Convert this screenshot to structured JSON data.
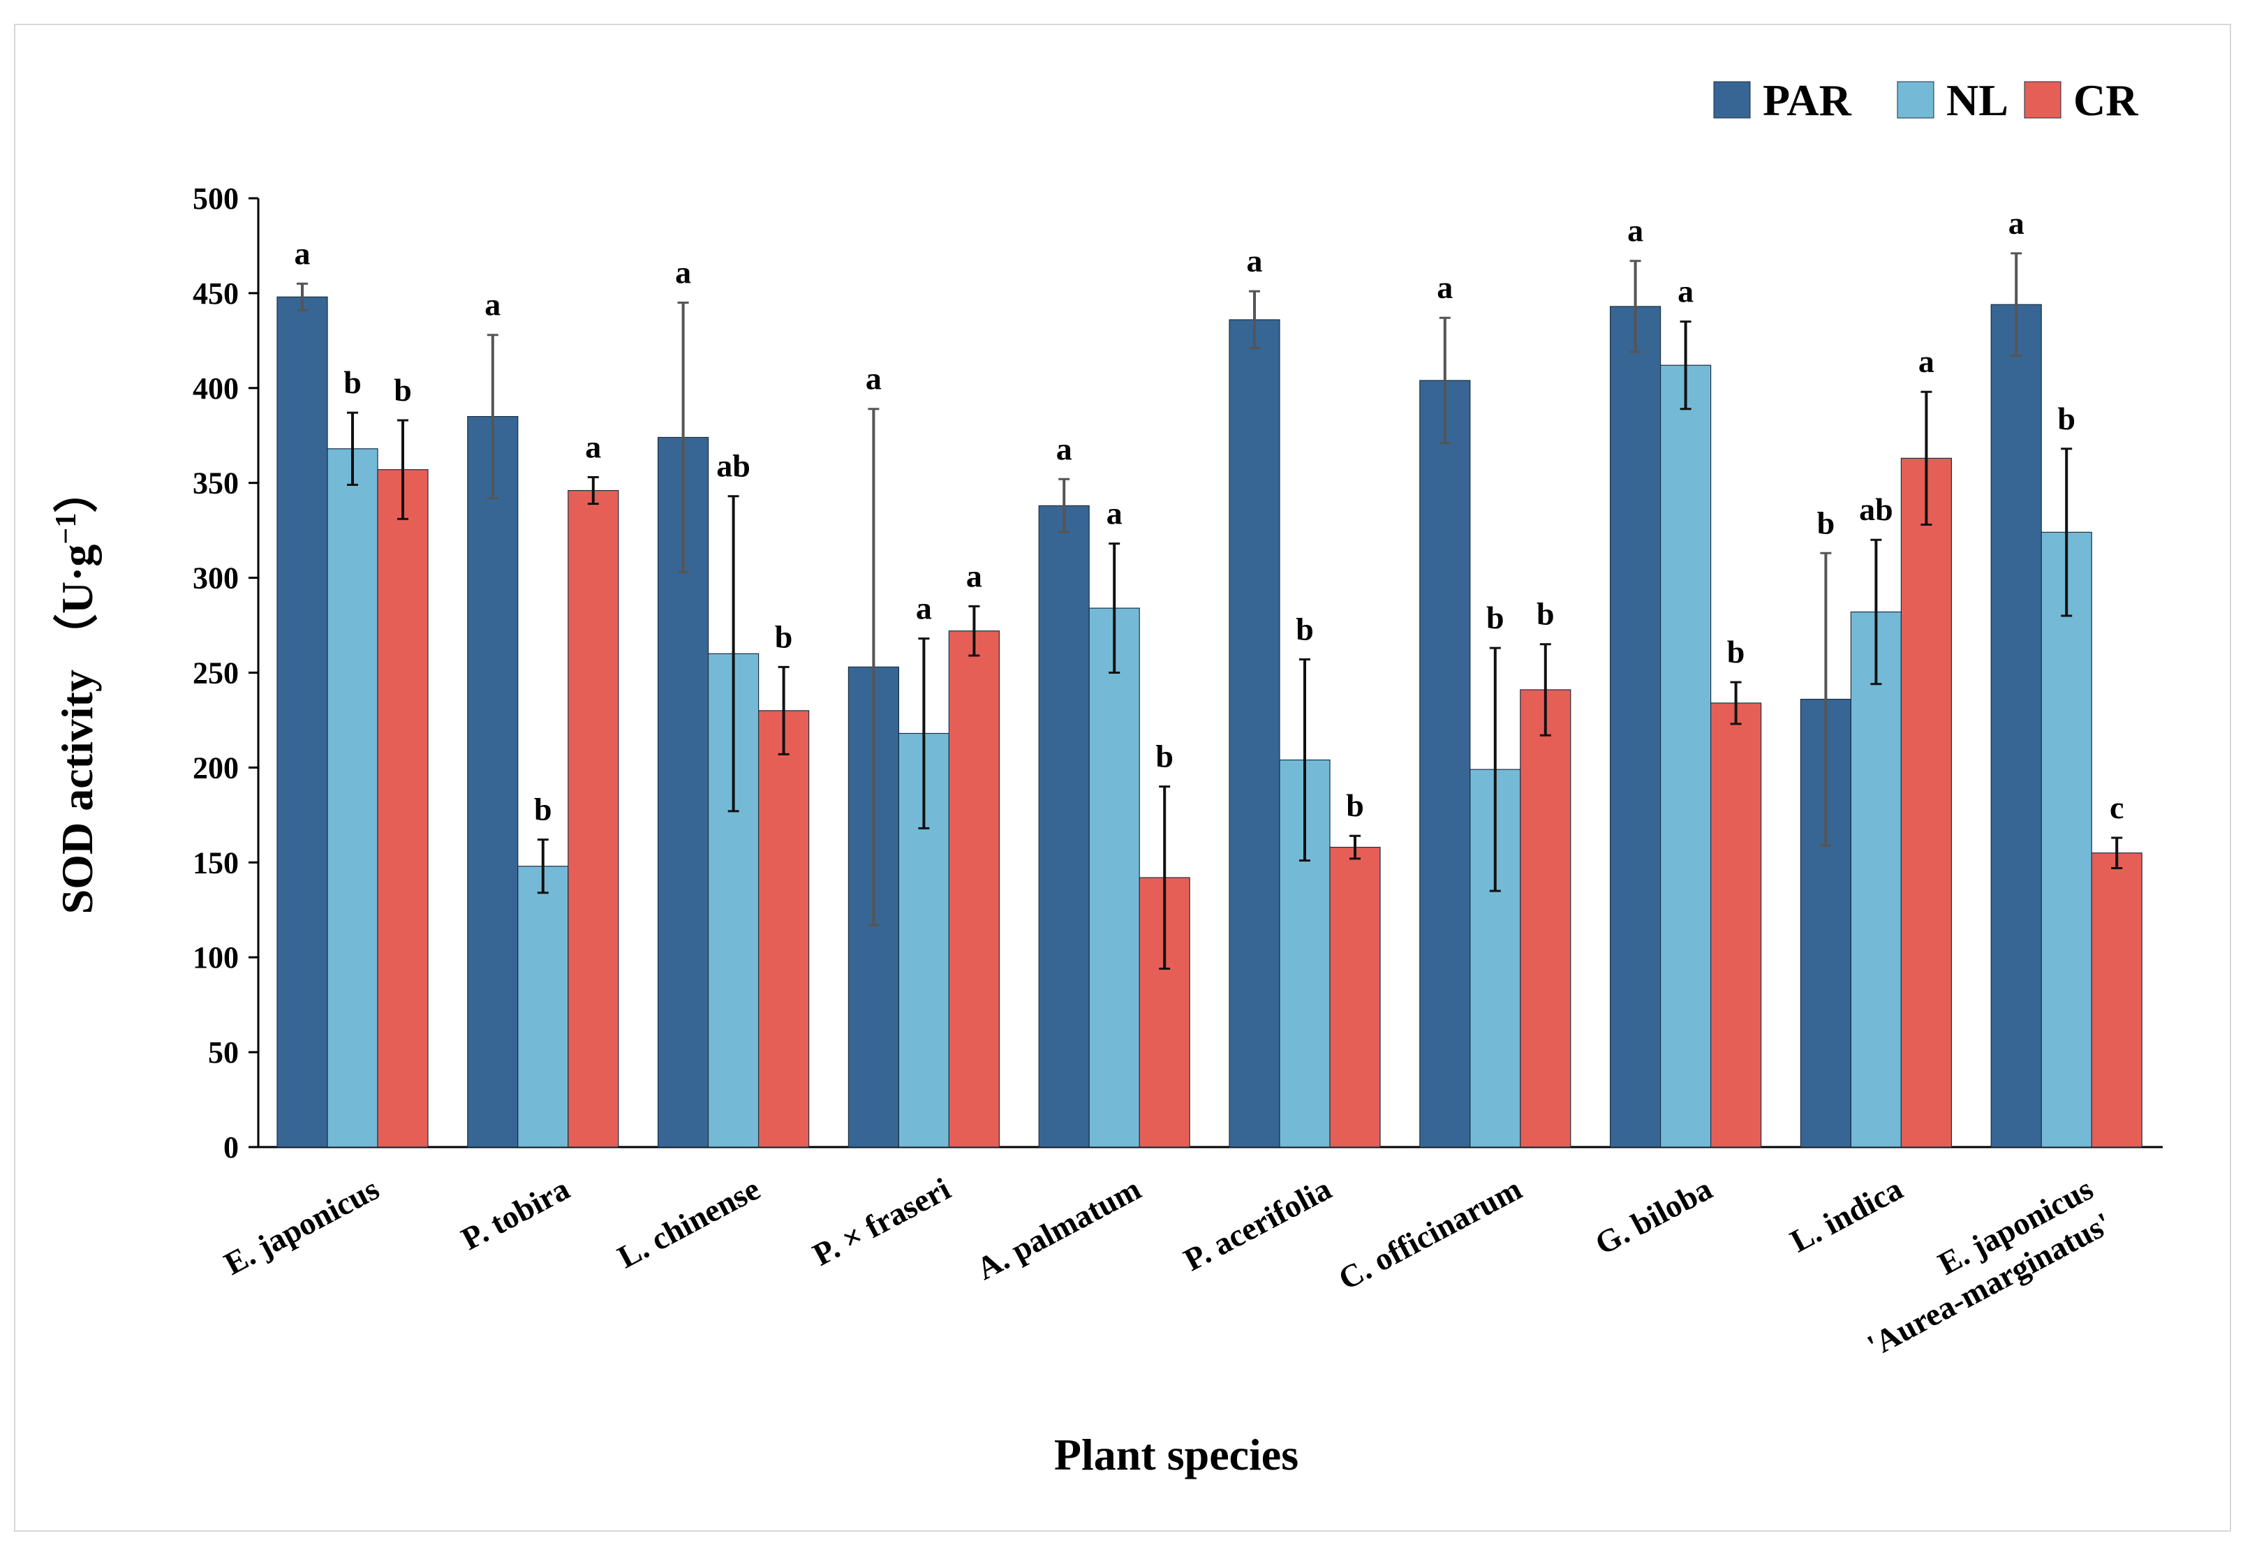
{
  "chart_data": {
    "type": "bar",
    "title": "",
    "xlabel": "Plant species",
    "ylabel": "SOD activity （U·g",
    "ylabel_sup": "−1",
    "ylabel_end": "）",
    "ylim": [
      0,
      500
    ],
    "yticks": [
      "0",
      "50",
      "100",
      "150",
      "200",
      "250",
      "300",
      "350",
      "400",
      "450",
      "500"
    ],
    "ytick_values": [
      0,
      50,
      100,
      150,
      200,
      250,
      300,
      350,
      400,
      450,
      500
    ],
    "legend_position": "top-right",
    "categories": [
      [
        "E. japonicus"
      ],
      [
        "P. tobira"
      ],
      [
        "L. chinense"
      ],
      [
        "P. × fraseri"
      ],
      [
        "A. palmatum"
      ],
      [
        "P. acerifolia"
      ],
      [
        "C. officinarum"
      ],
      [
        "G. biloba"
      ],
      [
        "L. indica"
      ],
      [
        "E. japonicus",
        "'Aurea-marginatus'"
      ]
    ],
    "series": [
      {
        "name": "PAR",
        "color": "#376694",
        "values": [
          448,
          385,
          374,
          253,
          338,
          436,
          404,
          443,
          236,
          444
        ],
        "errors": [
          7,
          43,
          71,
          136,
          14,
          15,
          33,
          24,
          77,
          27
        ],
        "letters": [
          "a",
          "a",
          "a",
          "a",
          "a",
          "a",
          "a",
          "a",
          "b",
          "a"
        ]
      },
      {
        "name": "NL",
        "color": "#74bad6",
        "values": [
          368,
          148,
          260,
          218,
          284,
          204,
          199,
          412,
          282,
          324
        ],
        "errors": [
          19,
          14,
          83,
          50,
          34,
          53,
          64,
          23,
          38,
          44
        ],
        "letters": [
          "b",
          "b",
          "ab",
          "a",
          "a",
          "b",
          "b",
          "a",
          "ab",
          "b"
        ]
      },
      {
        "name": "CR",
        "color": "#e65f56",
        "values": [
          357,
          346,
          230,
          272,
          142,
          158,
          241,
          234,
          363,
          155
        ],
        "errors": [
          26,
          7,
          23,
          13,
          48,
          6,
          24,
          11,
          35,
          8
        ],
        "letters": [
          "b",
          "a",
          "b",
          "a",
          "b",
          "b",
          "b",
          "b",
          "a",
          "c"
        ]
      }
    ]
  }
}
